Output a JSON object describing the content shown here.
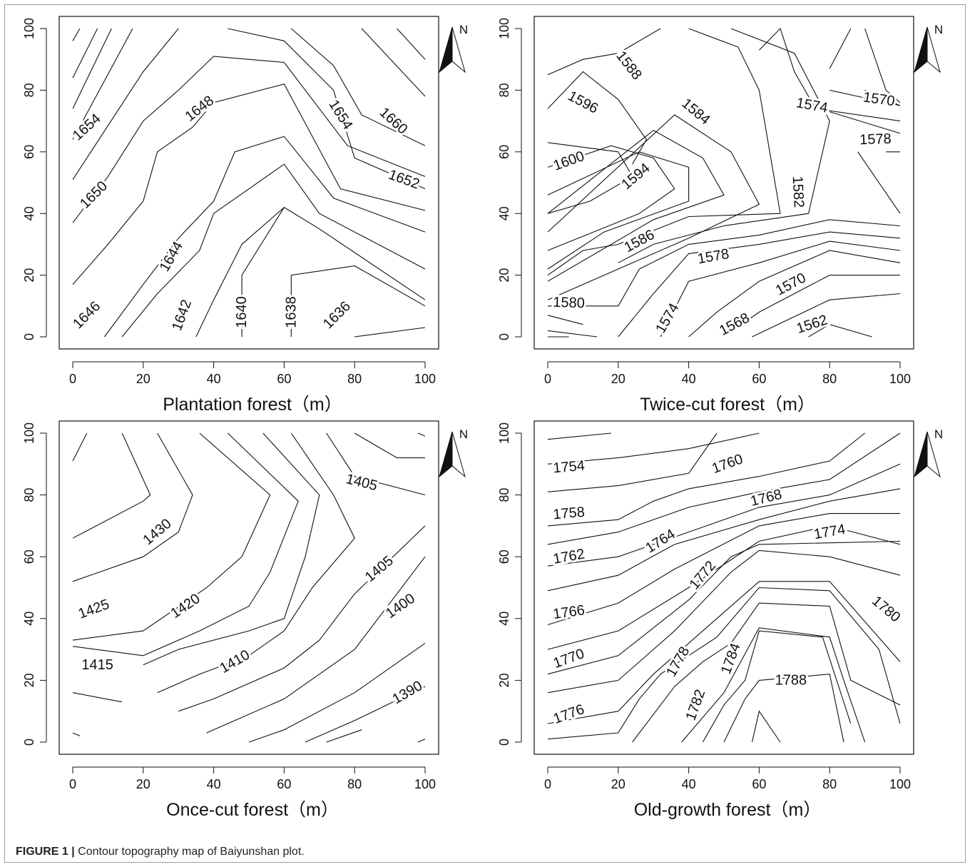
{
  "caption": {
    "label": "FIGURE 1 |",
    "text": "Contour topography map of Baiyunshan plot."
  },
  "north_label": "N",
  "chart_data": [
    {
      "type": "contour",
      "xlabel": "Plantation forest（m）",
      "xlim": [
        0,
        100
      ],
      "ylim": [
        0,
        100
      ],
      "xticks": [
        0,
        20,
        40,
        60,
        80,
        100
      ],
      "yticks": [
        0,
        20,
        40,
        60,
        80,
        100
      ],
      "contour_levels": [
        1636,
        1638,
        1640,
        1642,
        1644,
        1646,
        1648,
        1650,
        1652,
        1654,
        1660
      ],
      "contour_labels": [
        {
          "text": "1654",
          "x": 4,
          "y": 68,
          "angle": -42
        },
        {
          "text": "1650",
          "x": 6,
          "y": 46,
          "angle": -45
        },
        {
          "text": "1646",
          "x": 4,
          "y": 7,
          "angle": -45
        },
        {
          "text": "1648",
          "x": 36,
          "y": 74,
          "angle": -38
        },
        {
          "text": "1644",
          "x": 28,
          "y": 26,
          "angle": -60
        },
        {
          "text": "1642",
          "x": 31,
          "y": 7,
          "angle": -70
        },
        {
          "text": "1640",
          "x": 48,
          "y": 8,
          "angle": -90
        },
        {
          "text": "1638",
          "x": 62,
          "y": 8,
          "angle": -90
        },
        {
          "text": "1636",
          "x": 75,
          "y": 7,
          "angle": -45
        },
        {
          "text": "1654",
          "x": 76,
          "y": 72,
          "angle": 58
        },
        {
          "text": "1660",
          "x": 91,
          "y": 70,
          "angle": 42
        },
        {
          "text": "1652",
          "x": 94,
          "y": 51,
          "angle": 20
        }
      ]
    },
    {
      "type": "contour",
      "xlabel": "Twice-cut forest（m）",
      "xlim": [
        0,
        100
      ],
      "ylim": [
        0,
        100
      ],
      "xticks": [
        0,
        20,
        40,
        60,
        80,
        100
      ],
      "yticks": [
        0,
        20,
        40,
        60,
        80,
        100
      ],
      "contour_levels": [
        1562,
        1568,
        1570,
        1574,
        1578,
        1580,
        1582,
        1584,
        1586,
        1588,
        1594,
        1596,
        1600
      ],
      "contour_labels": [
        {
          "text": "1588",
          "x": 23,
          "y": 88,
          "angle": 52
        },
        {
          "text": "1596",
          "x": 10,
          "y": 76,
          "angle": 28
        },
        {
          "text": "1584",
          "x": 42,
          "y": 73,
          "angle": 40
        },
        {
          "text": "1600",
          "x": 6,
          "y": 57,
          "angle": -20
        },
        {
          "text": "1594",
          "x": 25,
          "y": 52,
          "angle": -40
        },
        {
          "text": "1582",
          "x": 71,
          "y": 47,
          "angle": 87
        },
        {
          "text": "1586",
          "x": 26,
          "y": 31,
          "angle": -28
        },
        {
          "text": "1578",
          "x": 47,
          "y": 26,
          "angle": -10
        },
        {
          "text": "1580",
          "x": 6,
          "y": 11,
          "angle": 2
        },
        {
          "text": "1574",
          "x": 34,
          "y": 6,
          "angle": -60
        },
        {
          "text": "1570",
          "x": 69,
          "y": 17,
          "angle": -28
        },
        {
          "text": "1568",
          "x": 53,
          "y": 4,
          "angle": -28
        },
        {
          "text": "1562",
          "x": 75,
          "y": 4,
          "angle": -18
        },
        {
          "text": "1574",
          "x": 75,
          "y": 75,
          "angle": 10
        },
        {
          "text": "1570",
          "x": 94,
          "y": 77,
          "angle": 8
        },
        {
          "text": "1578",
          "x": 93,
          "y": 64,
          "angle": -2
        }
      ]
    },
    {
      "type": "contour",
      "xlabel": "Once-cut forest（m）",
      "xlim": [
        0,
        100
      ],
      "ylim": [
        0,
        100
      ],
      "xticks": [
        0,
        20,
        40,
        60,
        80,
        100
      ],
      "yticks": [
        0,
        20,
        40,
        60,
        80,
        100
      ],
      "contour_levels": [
        1390,
        1400,
        1405,
        1410,
        1415,
        1420,
        1425,
        1430
      ],
      "contour_labels": [
        {
          "text": "1430",
          "x": 24,
          "y": 68,
          "angle": -40
        },
        {
          "text": "1425",
          "x": 6,
          "y": 43,
          "angle": -20
        },
        {
          "text": "1420",
          "x": 32,
          "y": 44,
          "angle": -34
        },
        {
          "text": "1415",
          "x": 7,
          "y": 25,
          "angle": 0
        },
        {
          "text": "1410",
          "x": 46,
          "y": 26,
          "angle": -30
        },
        {
          "text": "1405",
          "x": 82,
          "y": 84,
          "angle": 14
        },
        {
          "text": "1405",
          "x": 87,
          "y": 56,
          "angle": -40
        },
        {
          "text": "1400",
          "x": 93,
          "y": 44,
          "angle": -35
        },
        {
          "text": "1390",
          "x": 95,
          "y": 16,
          "angle": -30
        }
      ]
    },
    {
      "type": "contour",
      "xlabel": "Old-growth forest（m）",
      "xlim": [
        0,
        100
      ],
      "ylim": [
        0,
        100
      ],
      "xticks": [
        0,
        20,
        40,
        60,
        80,
        100
      ],
      "yticks": [
        0,
        20,
        40,
        60,
        80,
        100
      ],
      "contour_levels": [
        1754,
        1758,
        1760,
        1762,
        1764,
        1766,
        1768,
        1770,
        1772,
        1774,
        1776,
        1778,
        1780,
        1782,
        1784,
        1788
      ],
      "contour_labels": [
        {
          "text": "1754",
          "x": 6,
          "y": 89,
          "angle": -5
        },
        {
          "text": "1760",
          "x": 51,
          "y": 90,
          "angle": -20
        },
        {
          "text": "1758",
          "x": 6,
          "y": 74,
          "angle": -5
        },
        {
          "text": "1768",
          "x": 62,
          "y": 79,
          "angle": -14
        },
        {
          "text": "1774",
          "x": 80,
          "y": 68,
          "angle": -10
        },
        {
          "text": "1762",
          "x": 6,
          "y": 60,
          "angle": -10
        },
        {
          "text": "1764",
          "x": 32,
          "y": 65,
          "angle": -32
        },
        {
          "text": "1772",
          "x": 44,
          "y": 54,
          "angle": -50
        },
        {
          "text": "1766",
          "x": 6,
          "y": 42,
          "angle": -8
        },
        {
          "text": "1780",
          "x": 96,
          "y": 43,
          "angle": 40
        },
        {
          "text": "1770",
          "x": 6,
          "y": 27,
          "angle": -20
        },
        {
          "text": "1778",
          "x": 37,
          "y": 26,
          "angle": -60
        },
        {
          "text": "1784",
          "x": 52,
          "y": 27,
          "angle": -70
        },
        {
          "text": "1788",
          "x": 69,
          "y": 20,
          "angle": 0
        },
        {
          "text": "1782",
          "x": 42,
          "y": 12,
          "angle": -70
        },
        {
          "text": "1776",
          "x": 6,
          "y": 9,
          "angle": -20
        }
      ]
    }
  ]
}
